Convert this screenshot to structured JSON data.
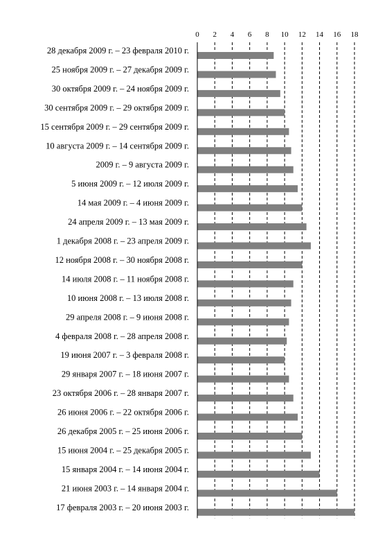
{
  "chart_data": {
    "type": "bar",
    "orientation": "horizontal",
    "title": "",
    "xlabel": "",
    "ylabel": "",
    "xlim": [
      0,
      18
    ],
    "x_ticks": [
      0,
      2,
      4,
      6,
      8,
      10,
      12,
      14,
      16,
      18
    ],
    "x_axis_position": "top",
    "grid": "vertical dashed",
    "legend": "none",
    "bar_color": "#808080",
    "categories": [
      "28 декабря  2009 г. – 23 февраля 2010 г.",
      "25 ноября 2009 г. – 27 декабря 2009 г.",
      "30 октября 2009 г. – 24 ноября 2009 г.",
      "30 сентября 2009 г. – 29 октября 2009 г.",
      "15 сентября 2009 г. – 29 сентября 2009 г.",
      "10 августа 2009 г. – 14 сентября 2009 г.",
      "2009 г. – 9 августа 2009 г.",
      "5 июня 2009 г. – 12 июля 2009 г.",
      "14 мая 2009 г. – 4 июня 2009 г.",
      "24 апреля 2009 г. – 13 мая 2009 г.",
      "1 декабря 2008 г. – 23 апреля 2009 г.",
      "12 ноября 2008 г. – 30 ноября 2008 г.",
      "14 июля 2008 г. – 11 ноября 2008 г.",
      "10 июня 2008 г. – 13 июля 2008 г.",
      "29 апреля 2008 г. – 9 июня 2008 г.",
      "4 февраля 2008 г. – 28 апреля 2008 г.",
      "19 июня 2007 г. – 3 февраля 2008 г.",
      "29 января 2007 г. – 18 июня 2007 г.",
      "23 октября 2006 г. – 28 января 2007 г.",
      "26 июня 2006 г. – 22 октября 2006 г.",
      "26 декабря 2005 г. – 25 июня 2006 г.",
      "15 июня 2004 г. – 25 декабря 2005 г.",
      "15 января 2004 г. – 14 июня 2004 г.",
      "21 июня 2003 г. – 14 января 2004 г.",
      "17 февраля 2003 г. – 20 июня 2003 г."
    ],
    "values": [
      8.75,
      9.0,
      9.5,
      10.0,
      10.5,
      10.75,
      11.0,
      11.5,
      12.0,
      12.5,
      13.0,
      12.0,
      11.0,
      10.75,
      10.5,
      10.25,
      10.0,
      10.5,
      11.0,
      11.5,
      12.0,
      13.0,
      14.0,
      16.0,
      18.0
    ]
  }
}
